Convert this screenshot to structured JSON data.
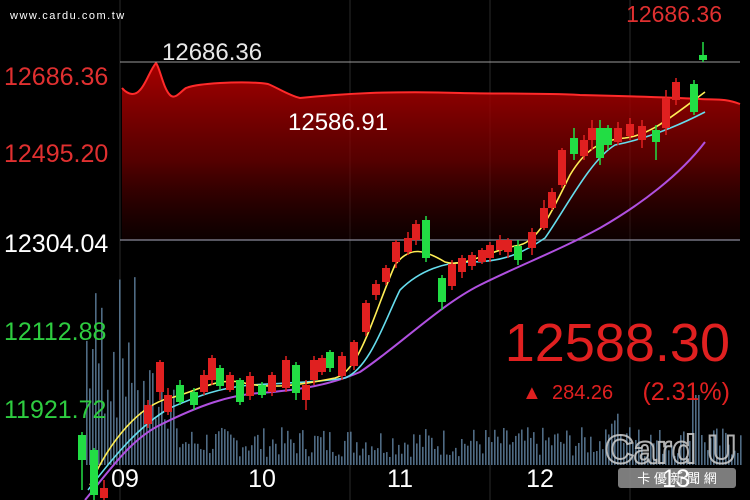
{
  "watermark_url": "www.cardu.com.tw",
  "price_levels": [
    {
      "label": "12686.36",
      "value": 12686.36,
      "color": "#e03030"
    },
    {
      "label": "12495.20",
      "value": 12495.2,
      "color": "#e03030"
    },
    {
      "label": "12304.04",
      "value": 12304.04,
      "color": "#ffffff"
    },
    {
      "label": "12112.88",
      "value": 12112.88,
      "color": "#2ecc40"
    },
    {
      "label": "11921.72",
      "value": 11921.72,
      "color": "#2ecc40"
    }
  ],
  "top_value": "12686.36",
  "intraday_high_label": "12686.36",
  "intraday_low_label": "12586.91",
  "last_price": "12588.30",
  "change_arrow": "▲",
  "change_value": "284.26",
  "change_pct": "(2.31%)",
  "x_labels": [
    "09",
    "10",
    "11",
    "12",
    "13"
  ],
  "logo": {
    "brand": "Card U",
    "tagline": "卡 優 新 聞 網"
  },
  "colors": {
    "up": "#e02020",
    "down": "#22dd44",
    "ma5": "#ffee55",
    "ma10": "#66ddee",
    "ma20": "#b050e0",
    "volume": "#6a8fb0"
  },
  "chart_data": {
    "type": "candlestick",
    "ylim": [
      11921.72,
      12686.36
    ],
    "ma_series": [
      {
        "values": [
          11900,
          11950,
          12000,
          12010,
          12020,
          12030,
          12050,
          12120,
          12260,
          12300,
          12290,
          12330,
          12380,
          12480,
          12560,
          12590
        ]
      },
      {
        "values": [
          11850,
          11900,
          11950,
          11980,
          11990,
          12000,
          12020,
          12070,
          12180,
          12230,
          12250,
          12280,
          12320,
          12420,
          12500,
          12550
        ]
      },
      {
        "values": [
          11800,
          11830,
          11860,
          11890,
          11910,
          11930,
          11960,
          12010,
          12080,
          12140,
          12180,
          12220,
          12270,
          12340,
          12420,
          12480
        ]
      }
    ],
    "intraday": [
      12590,
      12615,
      12686,
      12620,
      12605,
      12600,
      12602,
      12596,
      12592,
      12588,
      12590,
      12589,
      12588
    ]
  }
}
